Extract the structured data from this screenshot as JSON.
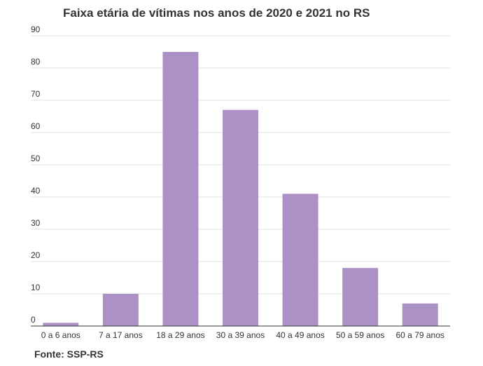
{
  "chart_data": {
    "type": "bar",
    "title": "Faixa etária de vítimas nos anos de 2020 e 2021 no RS",
    "categories": [
      "0 a 6 anos",
      "7 a 17 anos",
      "18 a 29 anos",
      "30 a 39 anos",
      "40 a 49 anos",
      "50 a 59 anos",
      "60 a 79 anos"
    ],
    "values": [
      1,
      10,
      85,
      67,
      41,
      18,
      7
    ],
    "ylim": [
      0,
      90
    ],
    "yticks": [
      0,
      10,
      20,
      30,
      40,
      50,
      60,
      70,
      80,
      90
    ],
    "xlabel": "",
    "ylabel": "",
    "grid": true,
    "bar_color": "#ab91c6",
    "grid_color": "#e0e0e0",
    "axis_color": "#333333"
  },
  "source": {
    "label": "Fonte:",
    "value": "SSP-RS"
  }
}
